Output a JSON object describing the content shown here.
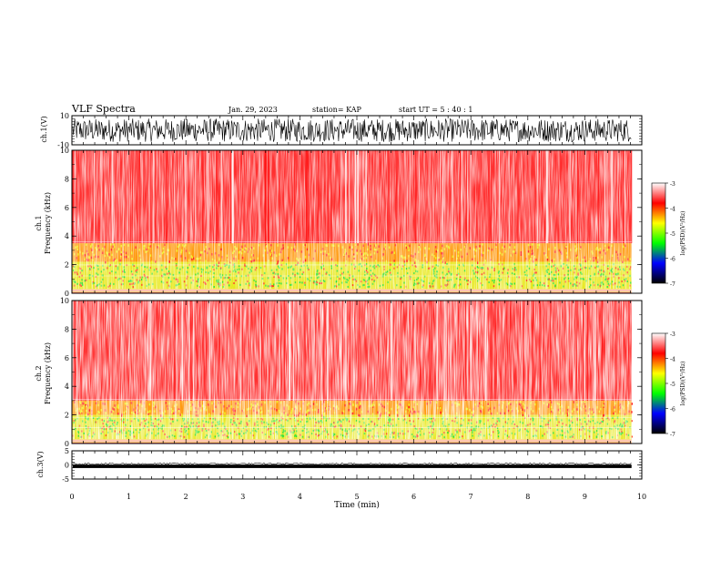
{
  "header": {
    "title": "VLF Spectra",
    "date": "Jan. 29, 2023",
    "station": "station= KAP",
    "start": "start  UT =   5 : 40 : 1"
  },
  "chart_data": [
    {
      "type": "line",
      "name": "waveform-ch1",
      "ylabel": "ch.1(V)",
      "ylim": [
        -10,
        10
      ],
      "yticks": [
        "10",
        "-10"
      ],
      "xlim": [
        0,
        10
      ],
      "data_extent_min": 9.82,
      "amplitude_range": [
        -8,
        8
      ]
    },
    {
      "type": "heatmap",
      "name": "spectrogram-ch1",
      "ylabel_top": "ch.1",
      "ylabel": "Frequency  (kHz)",
      "ylim": [
        0,
        10
      ],
      "yticks": [
        "0",
        "2",
        "4",
        "6",
        "8",
        "10"
      ],
      "xlim": [
        0,
        10
      ],
      "data_extent_min": 9.82,
      "bands_khz": {
        "white_below": 0.3,
        "mixed_green_top": 2.2,
        "yellow_top": 3.5,
        "red_above": 3.5
      }
    },
    {
      "type": "heatmap",
      "name": "spectrogram-ch2",
      "ylabel_top": "ch.2",
      "ylabel": "Frequency  (kHz)",
      "ylim": [
        0,
        10
      ],
      "yticks": [
        "0",
        "2",
        "4",
        "6",
        "8",
        "10"
      ],
      "xlim": [
        0,
        10
      ],
      "data_extent_min": 9.82,
      "bands_khz": {
        "white_below": 0.3,
        "mixed_green_top": 2.0,
        "yellow_top": 3.0,
        "red_above": 3.0
      }
    },
    {
      "type": "line",
      "name": "waveform-ch3",
      "ylabel": "ch.3(V)",
      "ylim": [
        -5,
        5
      ],
      "yticks": [
        "5",
        "0",
        "-5"
      ],
      "xlim": [
        0,
        10
      ],
      "data_extent_min": 9.82,
      "baseline": -0.5,
      "amplitude_range": [
        -1.1,
        0.1
      ]
    }
  ],
  "xaxis": {
    "label": "Time  (min)",
    "ticks": [
      "0",
      "1",
      "2",
      "3",
      "4",
      "5",
      "6",
      "7",
      "8",
      "9",
      "10"
    ]
  },
  "colorbar": {
    "label": "log(PSD)(V²/Hz)",
    "ticks": [
      "-3",
      "-4",
      "-5",
      "-6",
      "-7"
    ],
    "stops": [
      "#ffffff",
      "#ff0000",
      "#ffff00",
      "#00ff00",
      "#0000ff",
      "#000000"
    ]
  }
}
